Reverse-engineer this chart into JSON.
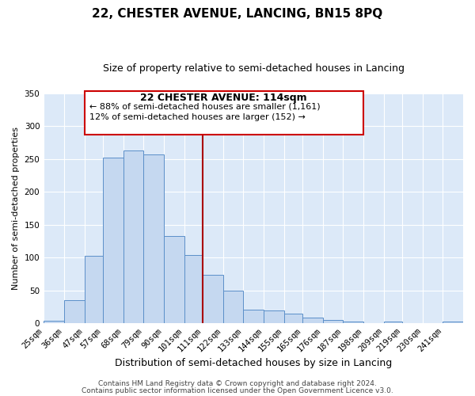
{
  "title": "22, CHESTER AVENUE, LANCING, BN15 8PQ",
  "subtitle": "Size of property relative to semi-detached houses in Lancing",
  "xlabel": "Distribution of semi-detached houses by size in Lancing",
  "ylabel": "Number of semi-detached properties",
  "bar_labels": [
    "25sqm",
    "36sqm",
    "47sqm",
    "57sqm",
    "68sqm",
    "79sqm",
    "90sqm",
    "101sqm",
    "111sqm",
    "122sqm",
    "133sqm",
    "144sqm",
    "155sqm",
    "165sqm",
    "176sqm",
    "187sqm",
    "198sqm",
    "209sqm",
    "219sqm",
    "230sqm",
    "241sqm"
  ],
  "bar_values": [
    4,
    35,
    102,
    252,
    263,
    257,
    133,
    104,
    73,
    50,
    21,
    19,
    14,
    8,
    5,
    2,
    0,
    2,
    0,
    0,
    2
  ],
  "bar_edges": [
    25,
    36,
    47,
    57,
    68,
    79,
    90,
    101,
    111,
    122,
    133,
    144,
    155,
    165,
    176,
    187,
    198,
    209,
    219,
    230,
    241,
    252
  ],
  "bar_color": "#c5d8f0",
  "bar_edgecolor": "#5b8fc9",
  "vline_color": "#aa0000",
  "vline_x": 111,
  "annotation_title": "22 CHESTER AVENUE: 114sqm",
  "annotation_line1": "← 88% of semi-detached houses are smaller (1,161)",
  "annotation_line2": "12% of semi-detached houses are larger (152) →",
  "annotation_box_color": "#cc0000",
  "annotation_fill": "#ffffff",
  "ylim": [
    0,
    350
  ],
  "yticks": [
    0,
    50,
    100,
    150,
    200,
    250,
    300,
    350
  ],
  "footer1": "Contains HM Land Registry data © Crown copyright and database right 2024.",
  "footer2": "Contains public sector information licensed under the Open Government Licence v3.0.",
  "axes_bg": "#dce9f8",
  "fig_bg": "#ffffff",
  "grid_color": "#ffffff",
  "title_fontsize": 11,
  "subtitle_fontsize": 9,
  "ylabel_fontsize": 8,
  "xlabel_fontsize": 9,
  "tick_fontsize": 7.5,
  "footer_fontsize": 6.5
}
